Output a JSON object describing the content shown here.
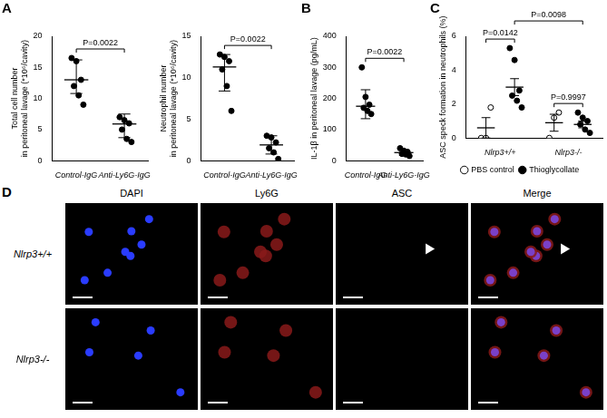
{
  "chart_data": [
    {
      "panel": "A",
      "type": "dot_plot",
      "grid": false,
      "y_label": [
        "Total cell number",
        "in peritoneal lavage (*10⁶/cavity)"
      ],
      "categories": [
        "Control-IgG",
        "Anti-Ly6G-IgG"
      ],
      "ylim": [
        0,
        20
      ],
      "yticks": [
        0,
        5,
        10,
        15,
        20
      ],
      "series": [
        {
          "color": "#000000",
          "marker": "filled",
          "points": [
            [
              16.5,
              16,
              13,
              12,
              10.5,
              9
            ],
            [
              7,
              6.5,
              6,
              5,
              3.5,
              3
            ]
          ],
          "values": [
            13.0,
            5.9
          ],
          "error_low": [
            10.8,
            3.7
          ],
          "error_high": [
            16.2,
            7.5
          ]
        }
      ],
      "annotations": [
        {
          "text": "P=0.0022",
          "between": [
            "Control-IgG",
            "Anti-Ly6G-IgG"
          ]
        }
      ]
    },
    {
      "panel": "A",
      "type": "dot_plot",
      "grid": false,
      "y_label": [
        "Neutrophil number",
        "in peritoneal lavage (*10⁶/cavity)"
      ],
      "categories": [
        "Control-IgG",
        "Anti-Ly6G-IgG"
      ],
      "ylim": [
        0,
        15
      ],
      "yticks": [
        0,
        5,
        10,
        15
      ],
      "series": [
        {
          "color": "#000000",
          "marker": "filled",
          "points": [
            [
              12.8,
              12.5,
              12,
              11,
              9,
              6
            ],
            [
              3,
              2.8,
              2.2,
              1.5,
              1,
              0.2
            ]
          ],
          "values": [
            11.3,
            1.9
          ],
          "error_low": [
            8.4,
            0.8
          ],
          "error_high": [
            12.8,
            3.0
          ]
        }
      ],
      "annotations": [
        {
          "text": "P=0.0022",
          "between": [
            "Control-IgG",
            "Anti-Ly6G-IgG"
          ]
        }
      ]
    },
    {
      "panel": "B",
      "type": "dot_plot",
      "grid": false,
      "y_label": [
        "IL-1β in peritoneal lavage (pg/mL)"
      ],
      "categories": [
        "Control-IgG",
        "Anti-Ly6G-IgG"
      ],
      "ylim": [
        0,
        400
      ],
      "yticks": [
        0,
        100,
        200,
        300,
        400
      ],
      "series": [
        {
          "color": "#000000",
          "marker": "filled",
          "points": [
            [
              300,
              205,
              180,
              170,
              160,
              150
            ],
            [
              40,
              32,
              28,
              22,
              20,
              15
            ]
          ],
          "values": [
            175,
            26
          ],
          "error_low": [
            135,
            17
          ],
          "error_high": [
            228,
            36
          ]
        }
      ],
      "annotations": [
        {
          "text": "P=0.0022",
          "between": [
            "Control-IgG",
            "Anti-Ly6G-IgG"
          ]
        }
      ]
    },
    {
      "panel": "C",
      "type": "dot_plot",
      "grid": false,
      "legend": "bottom",
      "y_label": [
        "ASC speck formation in neutrophils (%)"
      ],
      "categories": [
        "Nlrp3+/+",
        "Nlrp3-/-"
      ],
      "ylim": [
        0,
        6
      ],
      "yticks": [
        0,
        2,
        4,
        6
      ],
      "series": [
        {
          "name": "PBS control",
          "color": "#000000",
          "marker": "open",
          "points": [
            [
              0,
              0,
              1.8
            ],
            [
              0,
              1.2,
              1.5
            ]
          ],
          "values": [
            0.6,
            0.9
          ],
          "error_low": [
            0,
            0.4
          ],
          "error_high": [
            1.2,
            1.4
          ]
        },
        {
          "name": "Thioglycollate",
          "color": "#000000",
          "marker": "filled",
          "points": [
            [
              5.3,
              4.6,
              2.8,
              2.5,
              2.2,
              1.8
            ],
            [
              1.5,
              1.2,
              1.0,
              0.8,
              0.5,
              0.3
            ]
          ],
          "values": [
            3.0,
            0.8
          ],
          "error_low": [
            2.5,
            0.6
          ],
          "error_high": [
            3.5,
            1.0
          ]
        }
      ],
      "annotations": [
        {
          "text": "P=0.0142",
          "between": [
            [
              "Nlrp3+/+",
              "PBS control"
            ],
            [
              "Nlrp3+/+",
              "Thioglycollate"
            ]
          ]
        },
        {
          "text": "P=0.0098",
          "between": [
            [
              "Nlrp3+/+",
              "Thioglycollate"
            ],
            [
              "Nlrp3-/-",
              "Thioglycollate"
            ]
          ]
        },
        {
          "text": "P=0.9997",
          "between": [
            [
              "Nlrp3-/-",
              "PBS control"
            ],
            [
              "Nlrp3-/-",
              "Thioglycollate"
            ]
          ]
        }
      ]
    }
  ],
  "image_panel": {
    "panel": "D",
    "columns": [
      "DAPI",
      "Ly6G",
      "ASC",
      "Merge"
    ],
    "rows": [
      "Nlrp3+/+",
      "Nlrp3-/-"
    ]
  }
}
